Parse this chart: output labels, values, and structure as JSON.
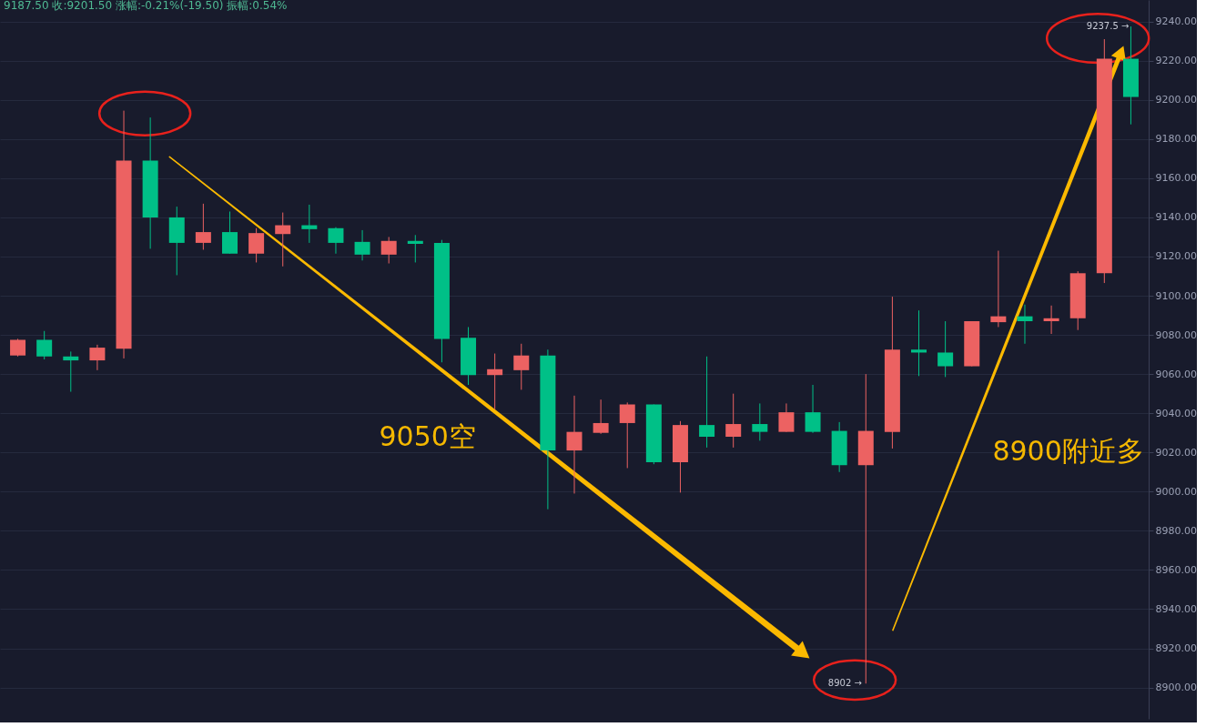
{
  "chart_data": {
    "type": "candlestick",
    "categories": [
      null,
      null,
      null,
      null,
      null,
      null,
      null,
      null,
      null,
      null,
      null,
      null,
      null,
      null,
      null,
      null,
      null,
      null,
      null,
      null,
      null,
      null,
      null,
      null,
      null,
      null,
      null,
      null,
      null,
      null,
      null,
      null,
      null,
      null,
      null,
      null,
      null,
      null,
      null,
      null,
      null,
      null,
      null
    ],
    "ohlc": [
      [
        9069.5,
        9078,
        9069,
        9077.5
      ],
      [
        9077.5,
        9082,
        9067.5,
        9069
      ],
      [
        9069,
        9071.5,
        9051,
        9067
      ],
      [
        9067,
        9075,
        9062,
        9073.5
      ],
      [
        9073,
        9194.5,
        9068,
        9169
      ],
      [
        9169,
        9191,
        9124,
        9140
      ],
      [
        9140,
        9145.5,
        9110.5,
        9127
      ],
      [
        9127,
        9147,
        9123.5,
        9132.5
      ],
      [
        9132.5,
        9143,
        9121.5,
        9121.5
      ],
      [
        9121.5,
        9134.5,
        9117,
        9132
      ],
      [
        9131.5,
        9142.5,
        9115,
        9136
      ],
      [
        9136,
        9146.5,
        9127,
        9134
      ],
      [
        9134.5,
        9135,
        9121.5,
        9127
      ],
      [
        9127.5,
        9133.5,
        9118,
        9121
      ],
      [
        9121,
        9130,
        9116.5,
        9128
      ],
      [
        9128,
        9131,
        9117,
        9126.5
      ],
      [
        9127,
        9128.5,
        9066,
        9078
      ],
      [
        9078.5,
        9084,
        9054.5,
        9059.5
      ],
      [
        9059.5,
        9070.5,
        9042,
        9062.5
      ],
      [
        9062,
        9075.5,
        9052,
        9069.5
      ],
      [
        9069.5,
        9072.5,
        8991,
        9021
      ],
      [
        9021,
        9049,
        8999,
        9030.5
      ],
      [
        9030,
        9047,
        9029.5,
        9035
      ],
      [
        9035,
        9045.5,
        9012,
        9044.5
      ],
      [
        9044.5,
        9044.5,
        9014,
        9015
      ],
      [
        9015,
        9036,
        8999.5,
        9034
      ],
      [
        9034,
        9069,
        9022.5,
        9028
      ],
      [
        9028,
        9050,
        9022.5,
        9034.5
      ],
      [
        9034.5,
        9045,
        9026,
        9030.5
      ],
      [
        9030.5,
        9045,
        9030.5,
        9040.5
      ],
      [
        9040.5,
        9054.5,
        9030,
        9030.5
      ],
      [
        9031,
        9035.5,
        9010,
        9013.5
      ],
      [
        9013.5,
        9060,
        8902,
        9031
      ],
      [
        9030.5,
        9099.5,
        9022,
        9072.5
      ],
      [
        9072.5,
        9092.5,
        9059,
        9071
      ],
      [
        9071,
        9087,
        9058.5,
        9064
      ],
      [
        9064,
        9087,
        9064,
        9087
      ],
      [
        9086.5,
        9123,
        9084,
        9089.5
      ],
      [
        9089.5,
        9095.5,
        9075.5,
        9087
      ],
      [
        9087,
        9095,
        9080.5,
        9088.5
      ],
      [
        9088.5,
        9112.5,
        9082.5,
        9111.5
      ],
      [
        9111.5,
        9231,
        9106.5,
        9221
      ],
      [
        9221,
        9237.5,
        9187.5,
        9201.5
      ]
    ],
    "colors": [
      "#ec6262",
      "#00c087",
      "#00c087",
      "#ec6262",
      "#ec6262",
      "#00c087",
      "#00c087",
      "#ec6262",
      "#00c087",
      "#ec6262",
      "#ec6262",
      "#00c087",
      "#00c087",
      "#00c087",
      "#ec6262",
      "#00c087",
      "#00c087",
      "#00c087",
      "#ec6262",
      "#ec6262",
      "#00c087",
      "#ec6262",
      "#ec6262",
      "#ec6262",
      "#00c087",
      "#ec6262",
      "#00c087",
      "#ec6262",
      "#00c087",
      "#ec6262",
      "#00c087",
      "#00c087",
      "#ec6262",
      "#ec6262",
      "#00c087",
      "#00c087",
      "#ec6262",
      "#ec6262",
      "#00c087",
      "#ec6262",
      "#ec6262",
      "#ec6262",
      "#00c087"
    ],
    "ylim": [
      8884,
      9251
    ],
    "yticks": [
      {
        "value": 8900,
        "label": "8900.00"
      },
      {
        "value": 8920,
        "label": "8920.00"
      },
      {
        "value": 8940,
        "label": "8940.00"
      },
      {
        "value": 8960,
        "label": "8960.00"
      },
      {
        "value": 8980,
        "label": "8980.00"
      },
      {
        "value": 9000,
        "label": "9000.00"
      },
      {
        "value": 9020,
        "label": "9020.00"
      },
      {
        "value": 9040,
        "label": "9040.00"
      },
      {
        "value": 9060,
        "label": "9060.00"
      },
      {
        "value": 9080,
        "label": "9080.00"
      },
      {
        "value": 9100,
        "label": "9100.00"
      },
      {
        "value": 9120,
        "label": "9120.00"
      },
      {
        "value": 9140,
        "label": "9140.00"
      },
      {
        "value": 9160,
        "label": "9160.00"
      },
      {
        "value": 9180,
        "label": "9180.00"
      },
      {
        "value": 9200,
        "label": "9200.00"
      },
      {
        "value": 9220,
        "label": "9220.00"
      },
      {
        "value": 9240,
        "label": "9240.00"
      }
    ],
    "grid": "y",
    "tick_labels": "y",
    "annotations": [
      "9187.50 收:9201.50 涨幅:-0.21%(-19.50) 振幅:0.54%",
      "9050空",
      "8900附近多",
      "8902 →",
      "9237.5 →"
    ]
  }
}
